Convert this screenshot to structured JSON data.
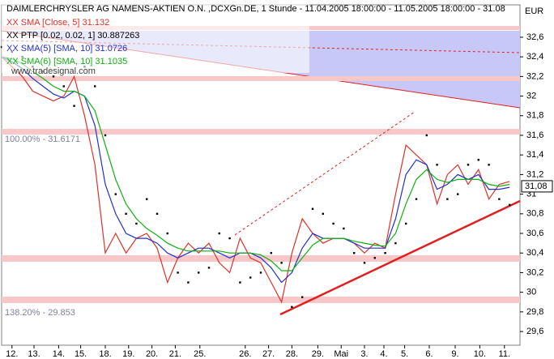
{
  "chart_data": {
    "type": "line",
    "title": "DAIMLERCHRYSLER AG NAMENS-AKTIEN O.N. ,DCXGn.DE, 1 Stunde - 11.04.2005 18:00:00 - 11.05.2005 18:00:00 - 31.08",
    "currency": "EUR",
    "source": "www.tradesignal.com",
    "annotations": [
      "100.00% - 31.6171",
      "138.20% - 29.853"
    ],
    "last_price": {
      "value": 31.08,
      "label": "31,08"
    },
    "x": [
      0,
      4,
      8,
      12,
      16,
      20,
      24,
      28,
      32,
      36,
      40,
      44,
      48,
      52,
      56,
      60,
      64,
      68,
      72,
      76,
      80,
      84,
      88,
      92,
      96,
      100,
      104,
      108,
      112,
      116,
      120,
      124,
      128,
      132,
      136,
      140,
      144,
      148,
      152,
      156,
      160,
      164,
      168,
      172,
      176,
      180,
      184,
      188,
      192,
      196
    ],
    "series": [
      {
        "name": "XX SMA [Close, 5] 31.132",
        "color": "#e0302a",
        "style": "line",
        "values": [
          32.4,
          32.3,
          32.2,
          32.05,
          32.0,
          31.95,
          32.0,
          32.2,
          31.8,
          31.3,
          30.4,
          30.6,
          30.4,
          30.55,
          30.6,
          30.45,
          30.1,
          30.35,
          30.5,
          30.4,
          30.5,
          30.3,
          30.2,
          30.55,
          30.35,
          30.3,
          30.1,
          29.9,
          30.4,
          30.75,
          30.6,
          30.5,
          30.55,
          30.55,
          30.5,
          30.4,
          30.5,
          30.45,
          31.0,
          31.5,
          31.4,
          31.3,
          30.9,
          31.2,
          31.3,
          31.1,
          31.25,
          30.95,
          31.1,
          31.13
        ]
      },
      {
        "name": "XX PTP [0.02, 0.02, 1] 30.887263",
        "color": "#000000",
        "style": "dots",
        "values": [
          32.5,
          32.45,
          32.4,
          32.3,
          32.25,
          32.2,
          32.1,
          31.9,
          32.3,
          32.1,
          31.6,
          31.0,
          30.8,
          30.7,
          30.95,
          30.8,
          30.6,
          30.2,
          30.1,
          30.2,
          30.25,
          30.6,
          30.55,
          30.1,
          30.15,
          30.2,
          30.4,
          30.3,
          29.85,
          29.95,
          30.85,
          30.8,
          30.7,
          30.65,
          30.4,
          30.3,
          30.35,
          30.4,
          30.5,
          30.7,
          30.95,
          31.6,
          31.3,
          30.95,
          31.0,
          31.3,
          31.35,
          31.3,
          30.95,
          30.89
        ]
      },
      {
        "name": "XX SMA(5) [SMA, 10] 31.0726",
        "color": "#2030d0",
        "style": "line",
        "values": [
          32.4,
          32.35,
          32.28,
          32.18,
          32.1,
          32.02,
          31.98,
          32.05,
          32.0,
          31.7,
          31.1,
          30.8,
          30.6,
          30.55,
          30.55,
          30.5,
          30.4,
          30.35,
          30.4,
          30.45,
          30.45,
          30.4,
          30.35,
          30.4,
          30.4,
          30.35,
          30.25,
          30.1,
          30.2,
          30.45,
          30.6,
          30.55,
          30.55,
          30.55,
          30.5,
          30.45,
          30.45,
          30.45,
          30.75,
          31.2,
          31.35,
          31.3,
          31.05,
          31.1,
          31.2,
          31.15,
          31.2,
          31.05,
          31.05,
          31.07
        ]
      },
      {
        "name": "XX SMA(6) [SMA, 10] 31.1035",
        "color": "#10b010",
        "style": "line",
        "values": [
          32.4,
          32.38,
          32.33,
          32.25,
          32.18,
          32.1,
          32.05,
          32.05,
          32.0,
          31.85,
          31.5,
          31.15,
          30.9,
          30.75,
          30.65,
          30.58,
          30.5,
          30.45,
          30.42,
          30.42,
          30.42,
          30.42,
          30.4,
          30.4,
          30.4,
          30.38,
          30.32,
          30.22,
          30.22,
          30.35,
          30.48,
          30.55,
          30.55,
          30.55,
          30.52,
          30.5,
          30.48,
          30.47,
          30.6,
          30.9,
          31.15,
          31.25,
          31.15,
          31.12,
          31.15,
          31.15,
          31.15,
          31.1,
          31.08,
          31.1
        ]
      }
    ],
    "xlim": [
      0,
      200
    ],
    "xticks": [
      {
        "value": 4,
        "label": "12."
      },
      {
        "value": 12.5,
        "label": "13."
      },
      {
        "value": 22,
        "label": "14."
      },
      {
        "value": 30.5,
        "label": "15."
      },
      {
        "value": 40,
        "label": "18."
      },
      {
        "value": 49,
        "label": "19."
      },
      {
        "value": 58,
        "label": "20."
      },
      {
        "value": 67,
        "label": "21."
      },
      {
        "value": 76.5,
        "label": "25."
      },
      {
        "value": 94,
        "label": "26."
      },
      {
        "value": 103,
        "label": "27."
      },
      {
        "value": 112,
        "label": "28."
      },
      {
        "value": 122,
        "label": "29."
      },
      {
        "value": 131,
        "label": "Mai"
      },
      {
        "value": 140,
        "label": "3."
      },
      {
        "value": 147.5,
        "label": "4."
      },
      {
        "value": 155.5,
        "label": "5."
      },
      {
        "value": 165,
        "label": "6."
      },
      {
        "value": 175,
        "label": "9."
      },
      {
        "value": 184.5,
        "label": "10."
      },
      {
        "value": 194,
        "label": "11."
      }
    ],
    "ylim": [
      29.46,
      32.93
    ],
    "yticks": [
      {
        "value": 29.6,
        "label": "29,6"
      },
      {
        "value": 29.8,
        "label": "29,8"
      },
      30,
      {
        "value": 30.2,
        "label": "30,2"
      },
      {
        "value": 30.4,
        "label": "30,4"
      },
      {
        "value": 30.6,
        "label": "30,6"
      },
      {
        "value": 30.8,
        "label": "30,8"
      },
      31,
      {
        "value": 31.2,
        "label": "31,2"
      },
      {
        "value": 31.4,
        "label": "31,4"
      },
      {
        "value": 31.6,
        "label": "31,6"
      },
      {
        "value": 31.8,
        "label": "31,8"
      },
      32,
      {
        "value": 32.2,
        "label": "32,2"
      },
      {
        "value": 32.4,
        "label": "32,4"
      },
      {
        "value": 32.6,
        "label": "32,6"
      }
    ],
    "grid": false
  }
}
